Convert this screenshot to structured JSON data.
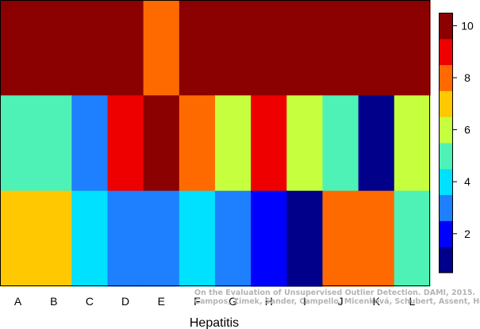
{
  "chart_data": {
    "type": "heatmap",
    "xlabel": "Hepatitis",
    "categories": [
      "A",
      "B",
      "C",
      "D",
      "E",
      "F",
      "G",
      "H",
      "I",
      "J",
      "K",
      "L"
    ],
    "rows": [
      [
        10,
        10,
        10,
        10,
        8,
        10,
        10,
        10,
        10,
        10,
        10,
        10
      ],
      [
        5,
        5,
        3,
        9,
        10,
        8,
        6,
        9,
        6,
        5,
        1,
        6
      ],
      [
        7,
        7,
        4,
        3,
        3,
        4,
        3,
        2,
        1,
        8,
        8,
        5
      ]
    ],
    "colorbar": {
      "levels": [
        1,
        2,
        3,
        4,
        5,
        6,
        7,
        8,
        9,
        10
      ],
      "colors": [
        "#00008b",
        "#0000ff",
        "#1e7fff",
        "#00e0ff",
        "#4ff2b6",
        "#c6ff3e",
        "#ffc800",
        "#ff6a00",
        "#ee0000",
        "#8b0000"
      ],
      "ticks": [
        2,
        4,
        6,
        8,
        10
      ]
    },
    "watermark": [
      "On the Evaluation of Unsupervised Outlier Detection. DAMI, 2015.",
      "Campos, Zimek, Sander, Campello, Micenková, Schubert, Assent, Houle"
    ]
  }
}
